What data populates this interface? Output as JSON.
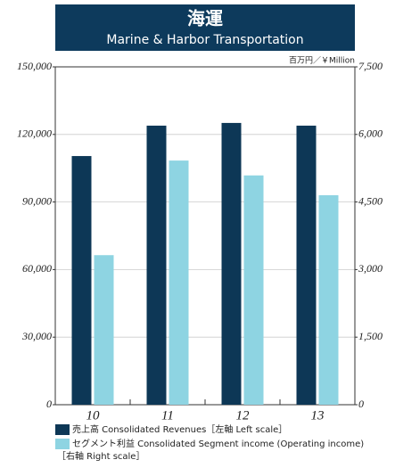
{
  "chart_data": {
    "type": "bar",
    "title": "海運",
    "subtitle": "Marine & Harbor Transportation",
    "unit_label": "百万円／￥Million",
    "categories": [
      "10",
      "11",
      "12",
      "13"
    ],
    "series": [
      {
        "name": "売上高 Consolidated Revenues",
        "scale_note": "［左軸 Left scale］",
        "color": "#0d3756",
        "values": [
          110400,
          123900,
          125100,
          123900
        ]
      },
      {
        "name": "セグメント利益 Consolidated Segment income (Operating income)",
        "scale_note": "［右軸 Right scale］",
        "color": "#8ed4e2",
        "axis": "y2",
        "values": [
          3320,
          5420,
          5090,
          4650
        ]
      }
    ],
    "ylim": [
      0,
      150000
    ],
    "yticks": [
      0,
      {
        "value": 30000,
        "label": "30,000"
      },
      {
        "value": 60000,
        "label": "60,000"
      },
      {
        "value": 90000,
        "label": "90,000"
      },
      {
        "value": 120000,
        "label": "120,000"
      },
      {
        "value": 150000,
        "label": "150,000"
      }
    ],
    "y2lim": [
      0,
      7500
    ],
    "y2ticks": [
      0,
      {
        "value": 1500,
        "label": "1,500"
      },
      {
        "value": 3000,
        "label": "3,000"
      },
      {
        "value": 4500,
        "label": "4,500"
      },
      {
        "value": 6000,
        "label": "6,000"
      },
      {
        "value": 7500,
        "label": "7,500"
      }
    ],
    "grid": true
  }
}
